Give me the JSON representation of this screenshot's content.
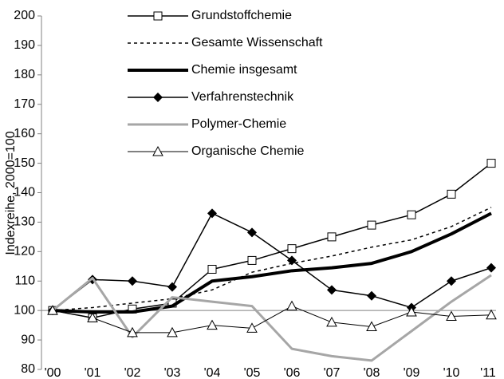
{
  "chart_data": {
    "type": "line",
    "y_label": "Indexreihe, 2000=100",
    "categories": [
      "'00",
      "'01",
      "'02",
      "'03",
      "'04",
      "'05",
      "'06",
      "'07",
      "'08",
      "'09",
      "'10",
      "'11"
    ],
    "ylim": [
      80,
      200
    ],
    "yticks": [
      80,
      90,
      100,
      110,
      120,
      130,
      140,
      150,
      160,
      170,
      180,
      190,
      200
    ],
    "reference_line": 100,
    "series": [
      {
        "name": "Grundstoffchemie",
        "color": "#000000",
        "width": 1.5,
        "dash": "none",
        "marker": "square",
        "values": [
          100,
          97.5,
          100.5,
          102.5,
          114,
          117,
          121,
          125,
          129,
          132.5,
          139.5,
          150
        ]
      },
      {
        "name": "Gesamte Wissenschaft",
        "color": "#000000",
        "width": 1.5,
        "dash": "4 4",
        "marker": "none",
        "values": [
          100,
          101,
          102.5,
          104,
          107,
          113,
          116,
          118.5,
          121.5,
          124,
          128.5,
          135
        ]
      },
      {
        "name": "Chemie insgesamt",
        "color": "#000000",
        "width": 4,
        "dash": "none",
        "marker": "none",
        "values": [
          100,
          99.5,
          99.5,
          101.5,
          110,
          111.5,
          113.5,
          114.5,
          116,
          120,
          126,
          133
        ]
      },
      {
        "name": "Verfahrenstechnik",
        "color": "#000000",
        "width": 1.5,
        "dash": "none",
        "marker": "diamond",
        "values": [
          100,
          110.5,
          110,
          108,
          133,
          126.5,
          117,
          107,
          105,
          101,
          110,
          114.5
        ]
      },
      {
        "name": "Polymer-Chemie",
        "color": "#a6a6a6",
        "width": 3,
        "dash": "none",
        "marker": "none",
        "values": [
          100,
          111,
          91,
          104.5,
          103,
          101.5,
          87,
          84.5,
          83,
          93,
          103,
          112
        ]
      },
      {
        "name": "Organische Chemie",
        "color": "#000000",
        "width": 1,
        "dash": "none",
        "marker": "triangle",
        "values": [
          100,
          97.5,
          92.5,
          92.5,
          95,
          94,
          101.5,
          96,
          94.5,
          99.5,
          98,
          98.5
        ]
      }
    ]
  }
}
